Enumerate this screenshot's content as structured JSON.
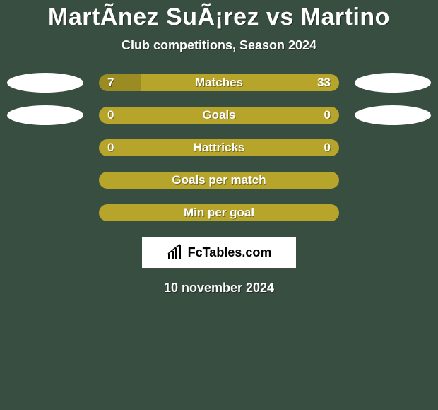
{
  "background_color": "#384e41",
  "title": "MartÃ­nez SuÃ¡rez vs Martino",
  "subtitle": "Club competitions, Season 2024",
  "date_text": "10 november 2024",
  "logo_text": "FcTables.com",
  "accent_color": "#b6a42b",
  "accent_dark": "#9a8b22",
  "ellipse_color": "#ffffff",
  "stats": [
    {
      "label": "Matches",
      "left_val": "7",
      "right_val": "33",
      "left_pct": 17.5,
      "right_pct": 82.5,
      "show_ellipse": true,
      "single_fill": false
    },
    {
      "label": "Goals",
      "left_val": "0",
      "right_val": "0",
      "left_pct": 50,
      "right_pct": 50,
      "show_ellipse": true,
      "single_fill": true
    },
    {
      "label": "Hattricks",
      "left_val": "0",
      "right_val": "0",
      "left_pct": 50,
      "right_pct": 50,
      "show_ellipse": false,
      "single_fill": true
    },
    {
      "label": "Goals per match",
      "left_val": "",
      "right_val": "",
      "left_pct": 50,
      "right_pct": 50,
      "show_ellipse": false,
      "single_fill": true
    },
    {
      "label": "Min per goal",
      "left_val": "",
      "right_val": "",
      "left_pct": 50,
      "right_pct": 50,
      "show_ellipse": false,
      "single_fill": true
    }
  ]
}
